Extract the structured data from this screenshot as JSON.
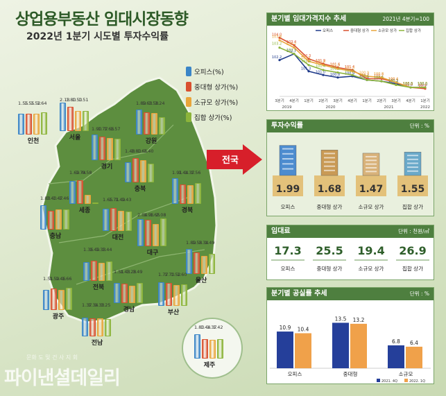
{
  "title": "상업용부동산 임대시장동향",
  "subtitle": "2022년 1분기 시도별 투자수익률",
  "legend": [
    "오피스(%)",
    "중대형 상가(%)",
    "소규모 상가(%)",
    "집합 상가(%)"
  ],
  "colors": {
    "office": "#3a85c7",
    "midlarge": "#d9502f",
    "small": "#e9a53a",
    "complex": "#8cb43a",
    "header": "#4e7f3f",
    "line": "#1f3a8a"
  },
  "national_label": "전국",
  "chart_data": [
    {
      "type": "bar",
      "title": "2022년 1분기 시도별 투자수익률",
      "series_names": [
        "오피스(%)",
        "중대형 상가(%)",
        "소규모 상가(%)",
        "집합 상가(%)"
      ],
      "regions": [
        {
          "name": "인천",
          "values": [
            1.55,
            1.55,
            1.52,
            1.64
          ]
        },
        {
          "name": "서울",
          "values": [
            2.13,
            1.8,
            1.5,
            1.51
          ]
        },
        {
          "name": "강원",
          "values": [
            1.89,
            1.63,
            1.58,
            1.24
          ]
        },
        {
          "name": "경기",
          "values": [
            1.9,
            1.77,
            1.66,
            1.57
          ]
        },
        {
          "name": "충북",
          "values": [
            1.48,
            1.8,
            1.65,
            1.4
          ]
        },
        {
          "name": "세종",
          "values": [
            1.69,
            1.74,
            0.58,
            null
          ]
        },
        {
          "name": "경북",
          "values": [
            1.91,
            1.44,
            1.37,
            1.56
          ]
        },
        {
          "name": "충남",
          "values": [
            1.83,
            1.4,
            1.47,
            1.46
          ]
        },
        {
          "name": "대전",
          "values": [
            1.65,
            1.71,
            1.49,
            1.43
          ]
        },
        {
          "name": "대구",
          "values": [
            2.04,
            1.96,
            1.65,
            2.08
          ]
        },
        {
          "name": "전북",
          "values": [
            1.36,
            1.49,
            1.33,
            1.44
          ]
        },
        {
          "name": "울산",
          "values": [
            1.89,
            1.58,
            1.34,
            1.49
          ]
        },
        {
          "name": "광주",
          "values": [
            1.51,
            1.59,
            1.46,
            1.66
          ]
        },
        {
          "name": "경남",
          "values": [
            1.51,
            1.43,
            1.28,
            1.49
          ]
        },
        {
          "name": "부산",
          "values": [
            1.77,
            1.7,
            1.52,
            1.6
          ]
        },
        {
          "name": "전남",
          "values": [
            1.37,
            1.34,
            1.33,
            1.25
          ]
        },
        {
          "name": "제주",
          "values": [
            1.8,
            1.44,
            1.37,
            1.42
          ]
        }
      ]
    },
    {
      "type": "line",
      "title": "분기별 임대가격지수 추세",
      "note": "2021년 4분기=100",
      "x": [
        "3분기",
        "4분기",
        "1분기",
        "2분기",
        "3분기",
        "4분기",
        "1분기",
        "2분기",
        "3분기",
        "4분기",
        "1분기"
      ],
      "years": [
        "2019",
        "2020",
        "2021",
        "2022"
      ],
      "series": [
        {
          "name": "오피스",
          "values": [
            102.2,
            102.7,
            101.3,
            101.0,
            100.8,
            100.9,
            100.6,
            100.5,
            100.3,
            100.0,
            100.0
          ]
        },
        {
          "name": "중대형 상가",
          "values": [
            104.0,
            103.4,
            102.3,
            101.9,
            101.6,
            101.4,
            100.7,
            100.7,
            100.4,
            100.0,
            99.9
          ]
        },
        {
          "name": "소규모 상가",
          "values": [
            103.8,
            103.2,
            102.1,
            101.8,
            101.5,
            101.3,
            100.9,
            100.8,
            100.4,
            100.0,
            100.0
          ]
        },
        {
          "name": "집합 상가",
          "values": [
            103.2,
            102.7,
            101.8,
            101.4,
            101.2,
            101.0,
            100.6,
            100.5,
            100.2,
            100.0,
            100.0
          ]
        }
      ]
    },
    {
      "type": "bar",
      "title": "투자수익률",
      "unit": "단위 : %",
      "categories": [
        "오피스",
        "중대형 상가",
        "소규모 상가",
        "집합 상가"
      ],
      "values": [
        1.99,
        1.68,
        1.47,
        1.55
      ]
    },
    {
      "type": "table",
      "title": "임대료",
      "unit": "단위 : 천원/㎡",
      "categories": [
        "오피스",
        "중대형 상가",
        "소규모 상가",
        "집합 상가"
      ],
      "values": [
        17.3,
        25.5,
        19.4,
        26.9
      ]
    },
    {
      "type": "bar",
      "title": "분기별 공실률 추세",
      "unit": "단위 : %",
      "categories": [
        "오피스",
        "중대형",
        "소규모"
      ],
      "series": [
        {
          "name": "2021. 4Q",
          "values": [
            10.9,
            13.5,
            6.8
          ]
        },
        {
          "name": "2022. 1Q",
          "values": [
            10.4,
            13.2,
            6.4
          ]
        }
      ]
    }
  ],
  "watermark": "파이낸셜데일리",
  "watermark_sub": "문화 도 및 건 사 지 회"
}
